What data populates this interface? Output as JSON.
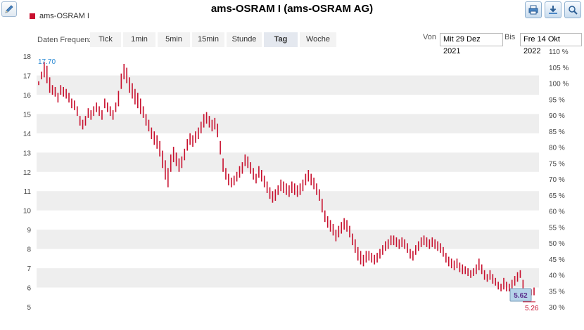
{
  "header": {
    "title": "ams-OSRAM I (ams-OSRAM AG)",
    "legend_label": "ams-OSRAM I",
    "icons": [
      "edit-icon",
      "print-icon",
      "download-icon",
      "zoom-icon"
    ]
  },
  "controls": {
    "freq_label": "Daten Frequenz",
    "frequencies": [
      "Tick",
      "1min",
      "5min",
      "15min",
      "Stunde",
      "Tag",
      "Woche"
    ],
    "active_frequency": "Tag",
    "from_label": "Von",
    "from_value": "Mit 29 Dez 2021",
    "to_label": "Bis",
    "to_value": "Fre 14 Okt 2022"
  },
  "colors": {
    "series": "#c8102e",
    "band": "#eeeeee",
    "high_label": "#2a8ad4",
    "last_label": "#c8102e"
  },
  "chart_data": {
    "type": "bar",
    "style": "high-low",
    "series": [
      {
        "name": "ams-OSRAM I",
        "high_low": [
          [
            16.7,
            16.5
          ],
          [
            17.2,
            16.8
          ],
          [
            17.7,
            16.9
          ],
          [
            17.5,
            16.6
          ],
          [
            16.9,
            16.1
          ],
          [
            16.5,
            16.0
          ],
          [
            16.4,
            15.9
          ],
          [
            16.1,
            15.6
          ],
          [
            16.5,
            16.0
          ],
          [
            16.4,
            15.9
          ],
          [
            16.3,
            15.8
          ],
          [
            16.1,
            15.6
          ],
          [
            15.8,
            15.3
          ],
          [
            15.7,
            15.2
          ],
          [
            15.4,
            14.9
          ],
          [
            14.9,
            14.4
          ],
          [
            14.7,
            14.2
          ],
          [
            14.9,
            14.4
          ],
          [
            15.3,
            14.8
          ],
          [
            15.2,
            14.7
          ],
          [
            15.4,
            14.9
          ],
          [
            15.6,
            15.1
          ],
          [
            15.4,
            14.9
          ],
          [
            15.2,
            14.7
          ],
          [
            15.8,
            15.3
          ],
          [
            15.6,
            15.1
          ],
          [
            15.4,
            14.9
          ],
          [
            15.2,
            14.7
          ],
          [
            15.6,
            15.1
          ],
          [
            16.2,
            15.4
          ],
          [
            17.1,
            16.3
          ],
          [
            17.6,
            16.8
          ],
          [
            17.4,
            16.6
          ],
          [
            16.9,
            16.1
          ],
          [
            16.6,
            15.8
          ],
          [
            16.3,
            15.5
          ],
          [
            16.1,
            15.3
          ],
          [
            15.8,
            15.0
          ],
          [
            15.4,
            14.8
          ],
          [
            15.0,
            14.4
          ],
          [
            14.7,
            14.1
          ],
          [
            14.3,
            13.7
          ],
          [
            14.1,
            13.4
          ],
          [
            13.9,
            13.2
          ],
          [
            13.6,
            12.8
          ],
          [
            13.1,
            12.2
          ],
          [
            12.6,
            11.6
          ],
          [
            12.2,
            11.2
          ],
          [
            12.9,
            12.0
          ],
          [
            13.3,
            12.5
          ],
          [
            13.0,
            12.3
          ],
          [
            12.7,
            12.0
          ],
          [
            12.8,
            12.2
          ],
          [
            13.2,
            12.6
          ],
          [
            13.7,
            13.1
          ],
          [
            14.0,
            13.4
          ],
          [
            13.9,
            13.3
          ],
          [
            14.1,
            13.5
          ],
          [
            14.3,
            13.7
          ],
          [
            14.6,
            14.0
          ],
          [
            15.0,
            14.3
          ],
          [
            15.1,
            14.5
          ],
          [
            14.9,
            14.3
          ],
          [
            14.7,
            14.1
          ],
          [
            14.8,
            14.2
          ],
          [
            14.5,
            13.8
          ],
          [
            13.6,
            12.9
          ],
          [
            12.7,
            12.0
          ],
          [
            12.2,
            11.6
          ],
          [
            11.9,
            11.3
          ],
          [
            11.7,
            11.2
          ],
          [
            11.8,
            11.3
          ],
          [
            12.0,
            11.5
          ],
          [
            12.3,
            11.7
          ],
          [
            12.5,
            11.9
          ],
          [
            12.9,
            12.3
          ],
          [
            12.8,
            12.2
          ],
          [
            12.5,
            11.9
          ],
          [
            12.2,
            11.6
          ],
          [
            11.9,
            11.4
          ],
          [
            12.3,
            11.7
          ],
          [
            12.1,
            11.5
          ],
          [
            11.8,
            11.2
          ],
          [
            11.5,
            10.9
          ],
          [
            11.2,
            10.6
          ],
          [
            11.0,
            10.4
          ],
          [
            11.1,
            10.5
          ],
          [
            11.3,
            10.8
          ],
          [
            11.6,
            11.0
          ],
          [
            11.5,
            10.9
          ],
          [
            11.4,
            10.8
          ],
          [
            11.3,
            10.7
          ],
          [
            11.5,
            10.9
          ],
          [
            11.4,
            10.8
          ],
          [
            11.3,
            10.7
          ],
          [
            11.4,
            10.8
          ],
          [
            11.6,
            11.0
          ],
          [
            11.9,
            11.3
          ],
          [
            12.1,
            11.5
          ],
          [
            11.9,
            11.3
          ],
          [
            11.7,
            11.1
          ],
          [
            11.4,
            10.8
          ],
          [
            11.1,
            10.5
          ],
          [
            10.6,
            9.9
          ],
          [
            10.0,
            9.4
          ],
          [
            9.7,
            9.1
          ],
          [
            9.5,
            8.9
          ],
          [
            9.3,
            8.7
          ],
          [
            9.0,
            8.4
          ],
          [
            9.2,
            8.6
          ],
          [
            9.4,
            8.8
          ],
          [
            9.6,
            9.0
          ],
          [
            9.5,
            8.9
          ],
          [
            9.2,
            8.6
          ],
          [
            8.8,
            8.2
          ],
          [
            8.5,
            7.8
          ],
          [
            8.1,
            7.4
          ],
          [
            7.9,
            7.2
          ],
          [
            7.7,
            7.1
          ],
          [
            7.9,
            7.3
          ],
          [
            7.9,
            7.4
          ],
          [
            7.8,
            7.3
          ],
          [
            7.7,
            7.2
          ],
          [
            7.8,
            7.3
          ],
          [
            8.0,
            7.5
          ],
          [
            8.2,
            7.7
          ],
          [
            8.4,
            7.9
          ],
          [
            8.5,
            8.0
          ],
          [
            8.7,
            8.2
          ],
          [
            8.7,
            8.2
          ],
          [
            8.6,
            8.1
          ],
          [
            8.5,
            8.0
          ],
          [
            8.6,
            8.1
          ],
          [
            8.5,
            8.0
          ],
          [
            8.3,
            7.8
          ],
          [
            8.0,
            7.5
          ],
          [
            7.9,
            7.4
          ],
          [
            8.2,
            7.7
          ],
          [
            8.4,
            7.9
          ],
          [
            8.6,
            8.1
          ],
          [
            8.7,
            8.2
          ],
          [
            8.6,
            8.1
          ],
          [
            8.5,
            8.0
          ],
          [
            8.6,
            8.1
          ],
          [
            8.5,
            8.0
          ],
          [
            8.4,
            7.9
          ],
          [
            8.3,
            7.8
          ],
          [
            8.1,
            7.6
          ],
          [
            7.8,
            7.3
          ],
          [
            7.6,
            7.1
          ],
          [
            7.5,
            7.0
          ],
          [
            7.4,
            6.9
          ],
          [
            7.5,
            7.0
          ],
          [
            7.3,
            6.8
          ],
          [
            7.2,
            6.7
          ],
          [
            7.1,
            6.7
          ],
          [
            7.0,
            6.6
          ],
          [
            6.9,
            6.5
          ],
          [
            7.0,
            6.6
          ],
          [
            7.2,
            6.7
          ],
          [
            7.5,
            6.9
          ],
          [
            7.2,
            6.7
          ],
          [
            6.9,
            6.4
          ],
          [
            6.7,
            6.3
          ],
          [
            6.9,
            6.4
          ],
          [
            6.7,
            6.2
          ],
          [
            6.5,
            6.1
          ],
          [
            6.3,
            5.9
          ],
          [
            6.2,
            5.8
          ],
          [
            6.5,
            5.9
          ],
          [
            6.3,
            5.8
          ],
          [
            6.2,
            5.8
          ],
          [
            6.4,
            5.9
          ],
          [
            6.6,
            6.1
          ],
          [
            6.8,
            6.3
          ],
          [
            6.9,
            6.5
          ],
          [
            6.4,
            5.9
          ],
          [
            5.9,
            5.4
          ],
          [
            5.8,
            5.4
          ],
          [
            5.9,
            5.6
          ],
          [
            6.0,
            5.6
          ]
        ]
      }
    ],
    "ylim": [
      5,
      18
    ],
    "yticks_left": [
      5,
      6,
      7,
      8,
      9,
      10,
      11,
      12,
      13,
      14,
      15,
      16,
      17,
      18
    ],
    "yticks_right": [
      "30 %",
      "35 %",
      "40 %",
      "45 %",
      "50 %",
      "55 %",
      "60 %",
      "65 %",
      "70 %",
      "75 %",
      "80 %",
      "85 %",
      "90 %",
      "95 %",
      "100 %",
      "105 %",
      "110 %"
    ],
    "high_label": "17.70",
    "current_label": "5.62",
    "low_label": "5.26",
    "grid": "alternating-bands",
    "legend": "top-left"
  }
}
